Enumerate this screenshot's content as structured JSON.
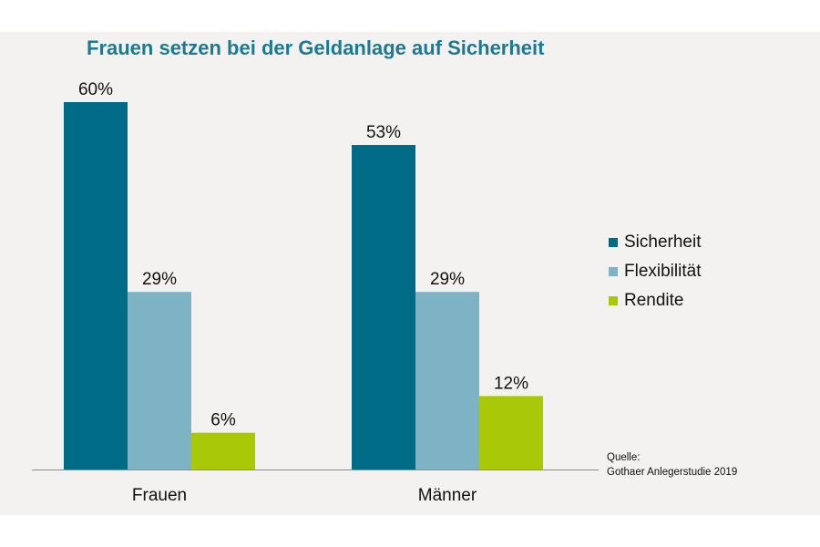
{
  "chart_data": {
    "type": "bar",
    "title": "Frauen setzen bei der Geldanlage auf Sicherheit",
    "categories": [
      "Frauen",
      "Männer"
    ],
    "series": [
      {
        "name": "Sicherheit",
        "values": [
          60,
          53
        ],
        "labels": [
          "60%",
          "53%"
        ],
        "color": "#006b87"
      },
      {
        "name": "Flexibilität",
        "values": [
          29,
          29
        ],
        "labels": [
          "29%",
          "29%"
        ],
        "color": "#7db3c5"
      },
      {
        "name": "Rendite",
        "values": [
          6,
          12
        ],
        "labels": [
          "6%",
          "12%"
        ],
        "color": "#a8c808"
      }
    ],
    "ylim": [
      0,
      60
    ],
    "xlabel": "",
    "ylabel": "",
    "grid": false,
    "legend": "right"
  },
  "source": {
    "line1": "Quelle:",
    "line2": "Gothaer Anlegerstudie 2019"
  }
}
